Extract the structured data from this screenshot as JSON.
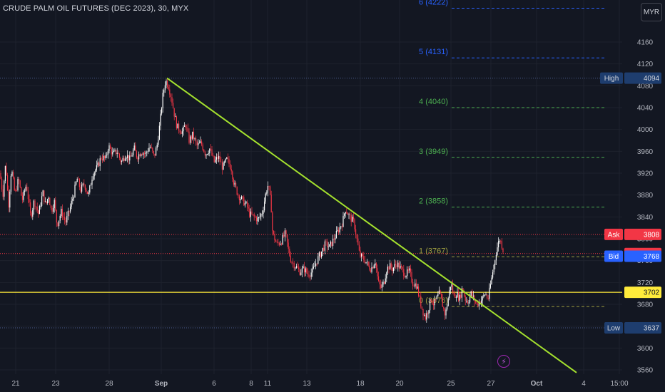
{
  "header": {
    "symbol_title": "CRUDE PALM OIL FUTURES (DEC 2023), 30, MYX"
  },
  "currency_button": "MYR",
  "colors": {
    "background": "#131722",
    "grid": "#1e222d",
    "axis_text": "#b2b5be",
    "trendline": "#a5e22e",
    "fib_green": "#4caf50",
    "fib_blue": "#2962ff",
    "fib_olive": "#a0a040",
    "bull": "#ffffff",
    "bear": "#f23645",
    "ask": "#f23645",
    "bid": "#2962ff",
    "current": "#ffeb3b",
    "high_low_label": "#1e3d6e"
  },
  "chart_data": {
    "type": "candlestick",
    "symbol": "CRUDE PALM OIL FUTURES (DEC 2023)",
    "interval": "30",
    "exchange": "MYX",
    "ylim": [
      3540,
      4260
    ],
    "y_ticks": [
      3560,
      3600,
      3640,
      3680,
      3720,
      3760,
      3800,
      3840,
      3880,
      3920,
      3960,
      4000,
      4040,
      4080,
      4120,
      4160
    ],
    "x_ticks": [
      "21",
      "23",
      "28",
      "Sep",
      "6",
      "8",
      "11",
      "13",
      "18",
      "20",
      "25",
      "27",
      "Oct",
      "4",
      "15:00"
    ],
    "price_path": [
      [
        0,
        3920
      ],
      [
        4,
        3880
      ],
      [
        8,
        3940
      ],
      [
        12,
        3860
      ],
      [
        16,
        3930
      ],
      [
        21,
        3880
      ],
      [
        26,
        3910
      ],
      [
        31,
        3870
      ],
      [
        37,
        3900
      ],
      [
        43,
        3840
      ],
      [
        48,
        3870
      ],
      [
        54,
        3845
      ],
      [
        60,
        3885
      ],
      [
        64,
        3860
      ],
      [
        68,
        3880
      ],
      [
        72,
        3850
      ],
      [
        76,
        3870
      ],
      [
        80,
        3825
      ],
      [
        86,
        3850
      ],
      [
        92,
        3830
      ],
      [
        98,
        3855
      ],
      [
        103,
        3880
      ],
      [
        108,
        3910
      ],
      [
        113,
        3890
      ],
      [
        118,
        3900
      ],
      [
        124,
        3880
      ],
      [
        130,
        3920
      ],
      [
        136,
        3930
      ],
      [
        142,
        3950
      ],
      [
        148,
        3945
      ],
      [
        152,
        3970
      ],
      [
        158,
        3955
      ],
      [
        164,
        3960
      ],
      [
        170,
        3940
      ],
      [
        176,
        3955
      ],
      [
        182,
        3945
      ],
      [
        188,
        3965
      ],
      [
        192,
        3950
      ],
      [
        198,
        3960
      ],
      [
        204,
        3955
      ],
      [
        210,
        3970
      ],
      [
        216,
        3950
      ],
      [
        220,
        3970
      ],
      [
        224,
        4010
      ],
      [
        228,
        4060
      ],
      [
        232,
        4090
      ],
      [
        236,
        4080
      ],
      [
        240,
        4060
      ],
      [
        244,
        4030
      ],
      [
        248,
        4005
      ],
      [
        252,
        4000
      ],
      [
        256,
        3995
      ],
      [
        260,
        4010
      ],
      [
        265,
        3980
      ],
      [
        270,
        3990
      ],
      [
        276,
        3970
      ],
      [
        282,
        3975
      ],
      [
        288,
        3955
      ],
      [
        294,
        3965
      ],
      [
        300,
        3940
      ],
      [
        306,
        3950
      ],
      [
        312,
        3930
      ],
      [
        318,
        3945
      ],
      [
        324,
        3930
      ],
      [
        328,
        3900
      ],
      [
        334,
        3880
      ],
      [
        340,
        3870
      ],
      [
        346,
        3860
      ],
      [
        350,
        3845
      ],
      [
        356,
        3840
      ],
      [
        362,
        3835
      ],
      [
        368,
        3850
      ],
      [
        372,
        3880
      ],
      [
        376,
        3900
      ],
      [
        380,
        3860
      ],
      [
        382,
        3810
      ],
      [
        388,
        3790
      ],
      [
        394,
        3795
      ],
      [
        400,
        3810
      ],
      [
        404,
        3780
      ],
      [
        408,
        3760
      ],
      [
        414,
        3750
      ],
      [
        420,
        3740
      ],
      [
        426,
        3745
      ],
      [
        432,
        3735
      ],
      [
        438,
        3740
      ],
      [
        444,
        3760
      ],
      [
        450,
        3775
      ],
      [
        456,
        3790
      ],
      [
        462,
        3785
      ],
      [
        468,
        3800
      ],
      [
        474,
        3815
      ],
      [
        480,
        3830
      ],
      [
        484,
        3855
      ],
      [
        490,
        3840
      ],
      [
        496,
        3830
      ],
      [
        500,
        3800
      ],
      [
        504,
        3770
      ],
      [
        508,
        3765
      ],
      [
        512,
        3760
      ],
      [
        516,
        3750
      ],
      [
        520,
        3745
      ],
      [
        526,
        3760
      ],
      [
        530,
        3720
      ],
      [
        534,
        3710
      ],
      [
        538,
        3720
      ],
      [
        542,
        3745
      ],
      [
        546,
        3750
      ],
      [
        550,
        3745
      ],
      [
        556,
        3755
      ],
      [
        562,
        3745
      ],
      [
        568,
        3735
      ],
      [
        574,
        3740
      ],
      [
        578,
        3720
      ],
      [
        584,
        3715
      ],
      [
        588,
        3690
      ],
      [
        592,
        3670
      ],
      [
        596,
        3655
      ],
      [
        600,
        3670
      ],
      [
        604,
        3690
      ],
      [
        608,
        3680
      ],
      [
        612,
        3690
      ],
      [
        616,
        3700
      ],
      [
        620,
        3680
      ],
      [
        624,
        3660
      ],
      [
        628,
        3690
      ],
      [
        632,
        3720
      ],
      [
        636,
        3695
      ],
      [
        640,
        3700
      ],
      [
        644,
        3690
      ],
      [
        648,
        3710
      ],
      [
        652,
        3690
      ],
      [
        656,
        3685
      ],
      [
        660,
        3700
      ],
      [
        664,
        3690
      ],
      [
        668,
        3680
      ],
      [
        672,
        3685
      ],
      [
        676,
        3690
      ],
      [
        680,
        3700
      ],
      [
        684,
        3690
      ],
      [
        688,
        3720
      ],
      [
        692,
        3750
      ],
      [
        696,
        3780
      ],
      [
        700,
        3800
      ],
      [
        703,
        3790
      ],
      [
        706,
        3775
      ]
    ],
    "trendline": {
      "from": {
        "date": "Aug 31",
        "price": 4094
      },
      "to": {
        "date": "Oct 4",
        "price": 3555
      }
    },
    "fib_levels": [
      {
        "label": "0 (3676)",
        "value": 3676,
        "color": "#a0a040"
      },
      {
        "label": "1 (3767)",
        "value": 3767,
        "color": "#a0a040"
      },
      {
        "label": "2 (3858)",
        "value": 3858,
        "color": "#4caf50"
      },
      {
        "label": "3 (3949)",
        "value": 3949,
        "color": "#4caf50"
      },
      {
        "label": "4 (4040)",
        "value": 4040,
        "color": "#4caf50"
      },
      {
        "label": "5 (4131)",
        "value": 4131,
        "color": "#2962ff"
      },
      {
        "label": "6 (4222)",
        "value": 4222,
        "color": "#2962ff"
      }
    ],
    "price_labels": [
      {
        "name": "High",
        "value": 4094,
        "color": "#1e3d6e",
        "text_color": "#d1d4dc"
      },
      {
        "name": "Ask",
        "value": 3808,
        "color": "#f23645",
        "text_color": "#ffffff"
      },
      {
        "name": "",
        "value": 3773,
        "color": "#f23645",
        "text_color": "#ffffff"
      },
      {
        "name": "Bid",
        "value": 3768,
        "color": "#2962ff",
        "text_color": "#ffffff"
      },
      {
        "name": "",
        "value": 3702,
        "color": "#ffeb3b",
        "text_color": "#131722"
      },
      {
        "name": "Low",
        "value": 3637,
        "color": "#1e3d6e",
        "text_color": "#d1d4dc"
      }
    ],
    "horizontal_lines": [
      {
        "value": 4094,
        "color": "#4a5a8a",
        "style": "dotted"
      },
      {
        "value": 3808,
        "color": "#f23645",
        "style": "dotted"
      },
      {
        "value": 3773,
        "color": "#f23645",
        "style": "dotted"
      },
      {
        "value": 3702,
        "color": "#ffeb3b",
        "style": "solid"
      },
      {
        "value": 3637,
        "color": "#4a5a8a",
        "style": "dotted"
      }
    ]
  }
}
